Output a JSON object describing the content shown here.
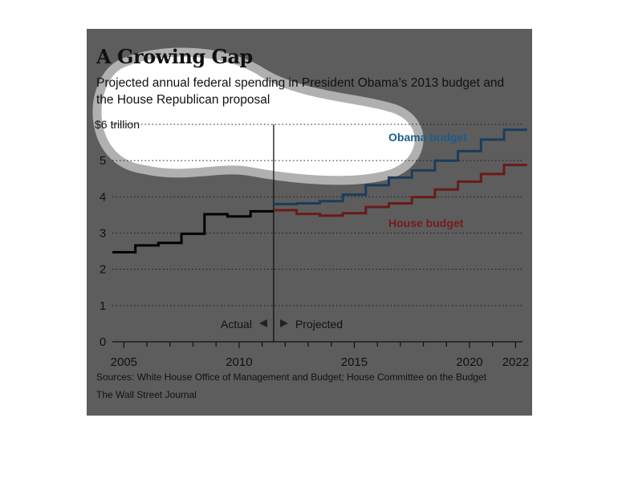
{
  "header": {
    "title": "A Growing Gap",
    "subtitle": "Projected annual federal spending in President Obama’s 2013 budget and the House Republican proposal"
  },
  "footer": {
    "sources": "Sources: White House Office of Management and Budget; House Committee on the Budget",
    "credit": "The Wall Street Journal"
  },
  "colors": {
    "panel": "#5d5d5d",
    "actual": "#000000",
    "obama": "#1a3d5c",
    "house": "#6a1a1a",
    "obama_label": "#1a5d8c",
    "house_label": "#7a1a1a"
  },
  "chart_data": {
    "type": "line",
    "step": true,
    "title": "A Growing Gap",
    "subtitle": "Projected annual federal spending in President Obama’s 2013 budget and the House Republican proposal",
    "xlabel": "",
    "ylabel": "",
    "xlim": [
      2004.5,
      2022.3
    ],
    "ylim": [
      0,
      6
    ],
    "y_unit_label": "$6 trillion",
    "yticks": [
      0,
      1,
      2,
      3,
      4,
      5,
      6
    ],
    "ytick_labels": [
      "0",
      "1",
      "2",
      "3",
      "4",
      "5",
      "$6 trillion"
    ],
    "xticks": [
      2005,
      2010,
      2015,
      2020,
      2022
    ],
    "xtick_labels": [
      "2005",
      "2010",
      "2015",
      "2020",
      "2022"
    ],
    "grid": true,
    "divider": {
      "x": 2011.5,
      "left_label": "Actual",
      "right_label": "Projected"
    },
    "series": [
      {
        "key": "actual",
        "name": "",
        "x": [
          2005,
          2006,
          2007,
          2008,
          2009,
          2010,
          2011
        ],
        "y": [
          2.47,
          2.66,
          2.73,
          2.98,
          3.52,
          3.46,
          3.6
        ]
      },
      {
        "key": "obama",
        "name": "Obama budget",
        "x": [
          2012,
          2013,
          2014,
          2015,
          2016,
          2017,
          2018,
          2019,
          2020,
          2021,
          2022
        ],
        "y": [
          3.8,
          3.82,
          3.88,
          4.06,
          4.32,
          4.53,
          4.73,
          5.0,
          5.26,
          5.58,
          5.85
        ]
      },
      {
        "key": "house",
        "name": "House budget",
        "x": [
          2012,
          2013,
          2014,
          2015,
          2016,
          2017,
          2018,
          2019,
          2020,
          2021,
          2022
        ],
        "y": [
          3.63,
          3.53,
          3.48,
          3.55,
          3.72,
          3.82,
          3.99,
          4.2,
          4.42,
          4.63,
          4.88
        ]
      }
    ]
  }
}
